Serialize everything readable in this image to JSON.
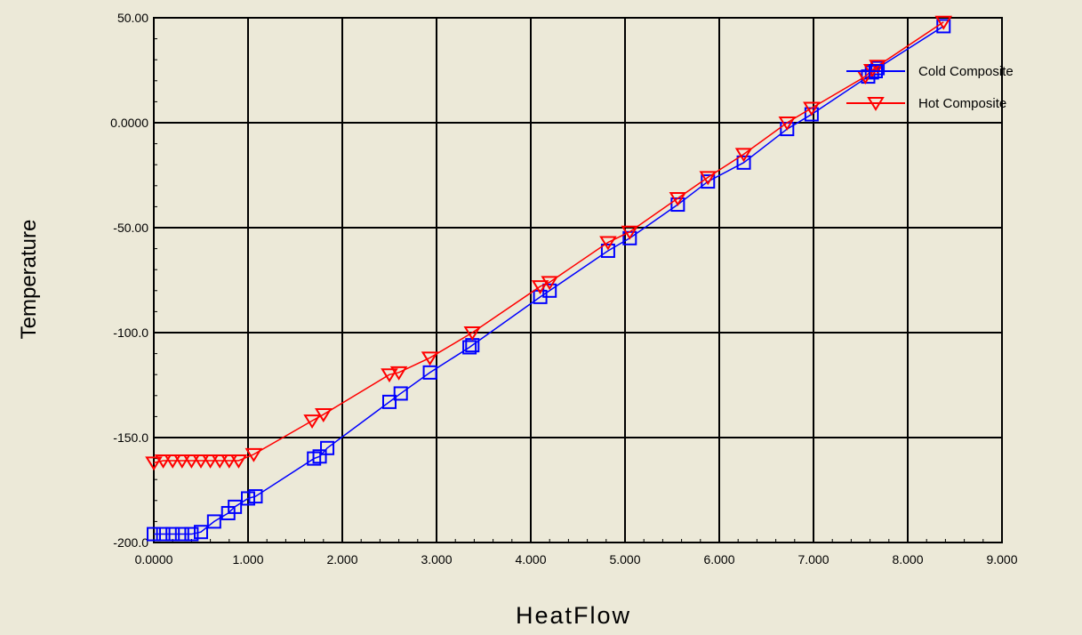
{
  "chart_data": {
    "type": "line",
    "xlabel": "HeatFlow",
    "ylabel": "Temperature",
    "xlim": [
      0,
      9
    ],
    "ylim": [
      -200,
      50
    ],
    "x_ticks": [
      {
        "v": 0,
        "label": "0.0000"
      },
      {
        "v": 1,
        "label": "1.000"
      },
      {
        "v": 2,
        "label": "2.000"
      },
      {
        "v": 3,
        "label": "3.000"
      },
      {
        "v": 4,
        "label": "4.000"
      },
      {
        "v": 5,
        "label": "5.000"
      },
      {
        "v": 6,
        "label": "6.000"
      },
      {
        "v": 7,
        "label": "7.000"
      },
      {
        "v": 8,
        "label": "8.000"
      },
      {
        "v": 9,
        "label": "9.000"
      }
    ],
    "y_ticks": [
      {
        "v": 50,
        "label": "50.00"
      },
      {
        "v": 0,
        "label": "0.0000"
      },
      {
        "v": -50,
        "label": "-50.00"
      },
      {
        "v": -100,
        "label": "-100.0"
      },
      {
        "v": -150,
        "label": "-150.0"
      },
      {
        "v": -200,
        "label": "-200.0"
      }
    ],
    "grid": true,
    "legend_position": "top-right",
    "series": [
      {
        "name": "Cold Composite",
        "color": "#0000ff",
        "marker": "square",
        "x": [
          0.0,
          0.1,
          0.2,
          0.3,
          0.4,
          0.5,
          0.64,
          0.79,
          0.86,
          1.0,
          1.08,
          1.7,
          1.76,
          1.84,
          2.5,
          2.62,
          2.93,
          3.35,
          3.38,
          4.1,
          4.2,
          4.82,
          5.05,
          5.56,
          5.88,
          6.26,
          6.72,
          6.98,
          7.58,
          7.62,
          7.68,
          8.38
        ],
        "y": [
          -196,
          -196,
          -196,
          -196,
          -196,
          -195,
          -190,
          -186,
          -183,
          -179,
          -178,
          -160,
          -159,
          -155,
          -133,
          -129,
          -119,
          -107,
          -106,
          -83,
          -80,
          -61,
          -55,
          -39,
          -28,
          -19,
          -3,
          4,
          22,
          24,
          26,
          46
        ]
      },
      {
        "name": "Hot Composite",
        "color": "#ff0000",
        "marker": "triangle-down",
        "x": [
          0.0,
          0.1,
          0.2,
          0.3,
          0.4,
          0.5,
          0.6,
          0.7,
          0.8,
          0.9,
          1.06,
          1.68,
          1.8,
          2.5,
          2.6,
          2.93,
          3.38,
          4.1,
          4.2,
          4.82,
          5.05,
          5.56,
          5.88,
          6.26,
          6.72,
          6.98,
          7.55,
          7.62,
          7.68,
          8.38
        ],
        "y": [
          -162,
          -161,
          -161,
          -161,
          -161,
          -161,
          -161,
          -161,
          -161,
          -161,
          -158,
          -142,
          -139,
          -120,
          -119,
          -112,
          -100,
          -78,
          -76,
          -57,
          -52,
          -36,
          -26,
          -15,
          0,
          7,
          22,
          25,
          27,
          48
        ]
      }
    ]
  }
}
